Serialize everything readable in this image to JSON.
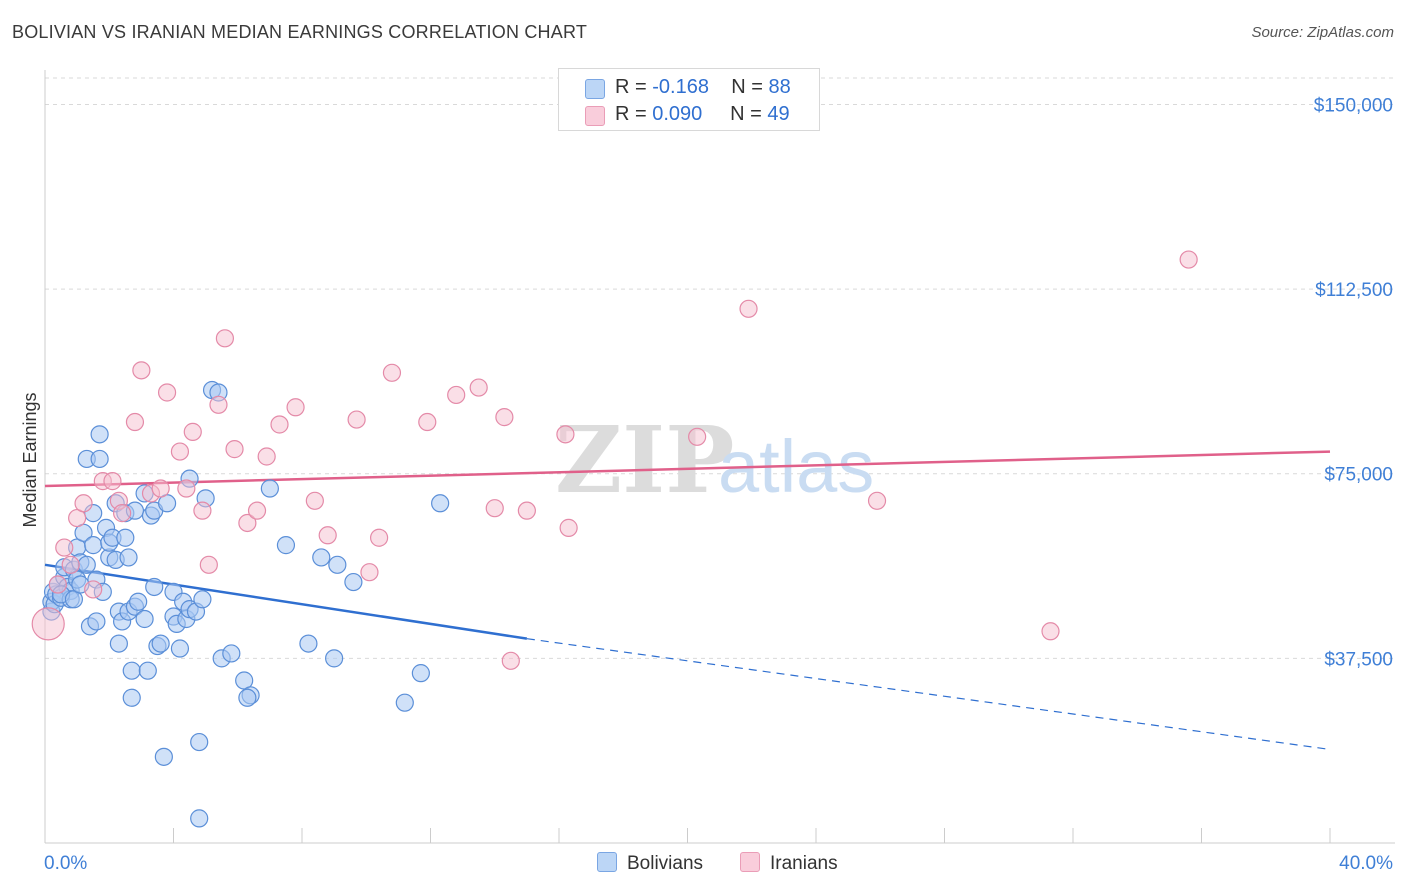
{
  "header": {
    "title": "BOLIVIAN VS IRANIAN MEDIAN EARNINGS CORRELATION CHART",
    "source": "Source: ZipAtlas.com"
  },
  "watermark": {
    "zip": "ZIP",
    "atlas": "atlas"
  },
  "legend_top": {
    "series1": {
      "r_label": "R =",
      "r_value": "-0.168",
      "n_label": "N =",
      "n_value": "88"
    },
    "series2": {
      "r_label": "R =",
      "r_value": "0.090",
      "n_label": "N =",
      "n_value": "49"
    }
  },
  "legend_bottom": {
    "series1": "Bolivians",
    "series2": "Iranians"
  },
  "colors": {
    "blue_fill": "#a9c9f2",
    "blue_stroke": "#5b8fd8",
    "blue_line": "#2f6fd0",
    "pink_fill": "#f6bfd0",
    "pink_stroke": "#e48aa8",
    "pink_line": "#e0608a",
    "grid": "#d9d9d9",
    "tick_text": "#3f7fd6"
  },
  "chart_data": {
    "type": "scatter",
    "title": "BOLIVIAN VS IRANIAN MEDIAN EARNINGS CORRELATION CHART",
    "xlabel": "",
    "ylabel": "Median Earnings",
    "xlim": [
      0,
      40
    ],
    "ylim": [
      0,
      157000
    ],
    "x_tick_labels": [
      "0.0%",
      "40.0%"
    ],
    "y_ticks": [
      37500,
      75000,
      112500,
      150000
    ],
    "y_tick_labels": [
      "$37,500",
      "$75,000",
      "$112,500",
      "$150,000"
    ],
    "grid": true,
    "series": [
      {
        "name": "Bolivians",
        "r": -0.168,
        "n": 88,
        "trend": {
          "x": [
            0,
            15
          ],
          "y": [
            56500,
            41500
          ],
          "dashed_to": [
            40,
            19000
          ]
        },
        "points": [
          [
            0.2,
            47000
          ],
          [
            0.2,
            49000
          ],
          [
            0.25,
            51000
          ],
          [
            0.3,
            48500
          ],
          [
            0.35,
            50500
          ],
          [
            0.4,
            52500
          ],
          [
            0.5,
            49800
          ],
          [
            0.6,
            54000
          ],
          [
            0.6,
            56000
          ],
          [
            0.7,
            52000
          ],
          [
            0.8,
            51200
          ],
          [
            0.8,
            49500
          ],
          [
            0.9,
            55500
          ],
          [
            1.0,
            53500
          ],
          [
            1.0,
            60000
          ],
          [
            1.1,
            57000
          ],
          [
            1.2,
            63000
          ],
          [
            1.3,
            56500
          ],
          [
            1.3,
            78000
          ],
          [
            1.4,
            44000
          ],
          [
            1.5,
            60500
          ],
          [
            1.5,
            67000
          ],
          [
            1.6,
            53500
          ],
          [
            1.6,
            45000
          ],
          [
            1.7,
            78000
          ],
          [
            1.7,
            83000
          ],
          [
            1.8,
            51000
          ],
          [
            1.9,
            64000
          ],
          [
            2.0,
            58000
          ],
          [
            2.0,
            61000
          ],
          [
            2.1,
            62000
          ],
          [
            2.2,
            69000
          ],
          [
            2.2,
            57500
          ],
          [
            2.3,
            47000
          ],
          [
            2.3,
            40500
          ],
          [
            2.4,
            45000
          ],
          [
            2.5,
            62000
          ],
          [
            2.5,
            67000
          ],
          [
            2.6,
            58000
          ],
          [
            2.6,
            47000
          ],
          [
            2.7,
            35000
          ],
          [
            2.7,
            29500
          ],
          [
            2.8,
            48000
          ],
          [
            2.8,
            67500
          ],
          [
            2.9,
            49000
          ],
          [
            3.1,
            71000
          ],
          [
            3.1,
            45500
          ],
          [
            3.2,
            35000
          ],
          [
            3.3,
            66500
          ],
          [
            3.4,
            52000
          ],
          [
            3.4,
            67500
          ],
          [
            3.5,
            40000
          ],
          [
            3.6,
            40500
          ],
          [
            3.7,
            17500
          ],
          [
            3.8,
            69000
          ],
          [
            4.0,
            51000
          ],
          [
            4.0,
            46000
          ],
          [
            4.1,
            44500
          ],
          [
            4.2,
            39500
          ],
          [
            4.3,
            49000
          ],
          [
            4.4,
            45500
          ],
          [
            4.5,
            47500
          ],
          [
            4.5,
            74000
          ],
          [
            4.7,
            47000
          ],
          [
            4.8,
            20500
          ],
          [
            4.9,
            49500
          ],
          [
            5.0,
            70000
          ],
          [
            5.2,
            92000
          ],
          [
            5.4,
            91500
          ],
          [
            5.5,
            37500
          ],
          [
            5.8,
            38500
          ],
          [
            6.2,
            33000
          ],
          [
            6.4,
            30000
          ],
          [
            6.3,
            29500
          ],
          [
            7.0,
            72000
          ],
          [
            7.5,
            60500
          ],
          [
            8.2,
            40500
          ],
          [
            8.6,
            58000
          ],
          [
            9.0,
            37500
          ],
          [
            9.1,
            56500
          ],
          [
            9.6,
            53000
          ],
          [
            11.2,
            28500
          ],
          [
            11.7,
            34500
          ],
          [
            12.3,
            69000
          ],
          [
            4.8,
            5000
          ],
          [
            0.5,
            50500
          ],
          [
            0.9,
            49500
          ],
          [
            1.1,
            52500
          ]
        ]
      },
      {
        "name": "Iranians",
        "r": 0.09,
        "n": 49,
        "trend": {
          "x": [
            0,
            40
          ],
          "y": [
            72500,
            79500
          ]
        },
        "points": [
          [
            0.1,
            44500
          ],
          [
            0.4,
            52500
          ],
          [
            0.6,
            60000
          ],
          [
            0.8,
            56500
          ],
          [
            1.0,
            66000
          ],
          [
            1.2,
            69000
          ],
          [
            1.5,
            51500
          ],
          [
            1.8,
            73500
          ],
          [
            2.1,
            73500
          ],
          [
            2.3,
            69500
          ],
          [
            2.4,
            67000
          ],
          [
            2.8,
            85500
          ],
          [
            3.0,
            96000
          ],
          [
            3.3,
            71000
          ],
          [
            3.6,
            72000
          ],
          [
            3.8,
            91500
          ],
          [
            4.2,
            79500
          ],
          [
            4.4,
            72000
          ],
          [
            4.6,
            83500
          ],
          [
            4.9,
            67500
          ],
          [
            5.1,
            56500
          ],
          [
            5.4,
            89000
          ],
          [
            5.6,
            102500
          ],
          [
            5.9,
            80000
          ],
          [
            6.3,
            65000
          ],
          [
            6.6,
            67500
          ],
          [
            6.9,
            78500
          ],
          [
            7.3,
            85000
          ],
          [
            7.8,
            88500
          ],
          [
            8.4,
            69500
          ],
          [
            8.8,
            62500
          ],
          [
            9.7,
            86000
          ],
          [
            10.1,
            55000
          ],
          [
            10.4,
            62000
          ],
          [
            10.8,
            95500
          ],
          [
            11.9,
            85500
          ],
          [
            12.8,
            91000
          ],
          [
            13.5,
            92500
          ],
          [
            14.0,
            68000
          ],
          [
            14.3,
            86500
          ],
          [
            14.5,
            37000
          ],
          [
            15.0,
            67500
          ],
          [
            16.2,
            83000
          ],
          [
            16.3,
            64000
          ],
          [
            20.3,
            82500
          ],
          [
            21.9,
            108500
          ],
          [
            25.9,
            69500
          ],
          [
            31.3,
            43000
          ],
          [
            35.6,
            118500
          ]
        ]
      }
    ]
  }
}
